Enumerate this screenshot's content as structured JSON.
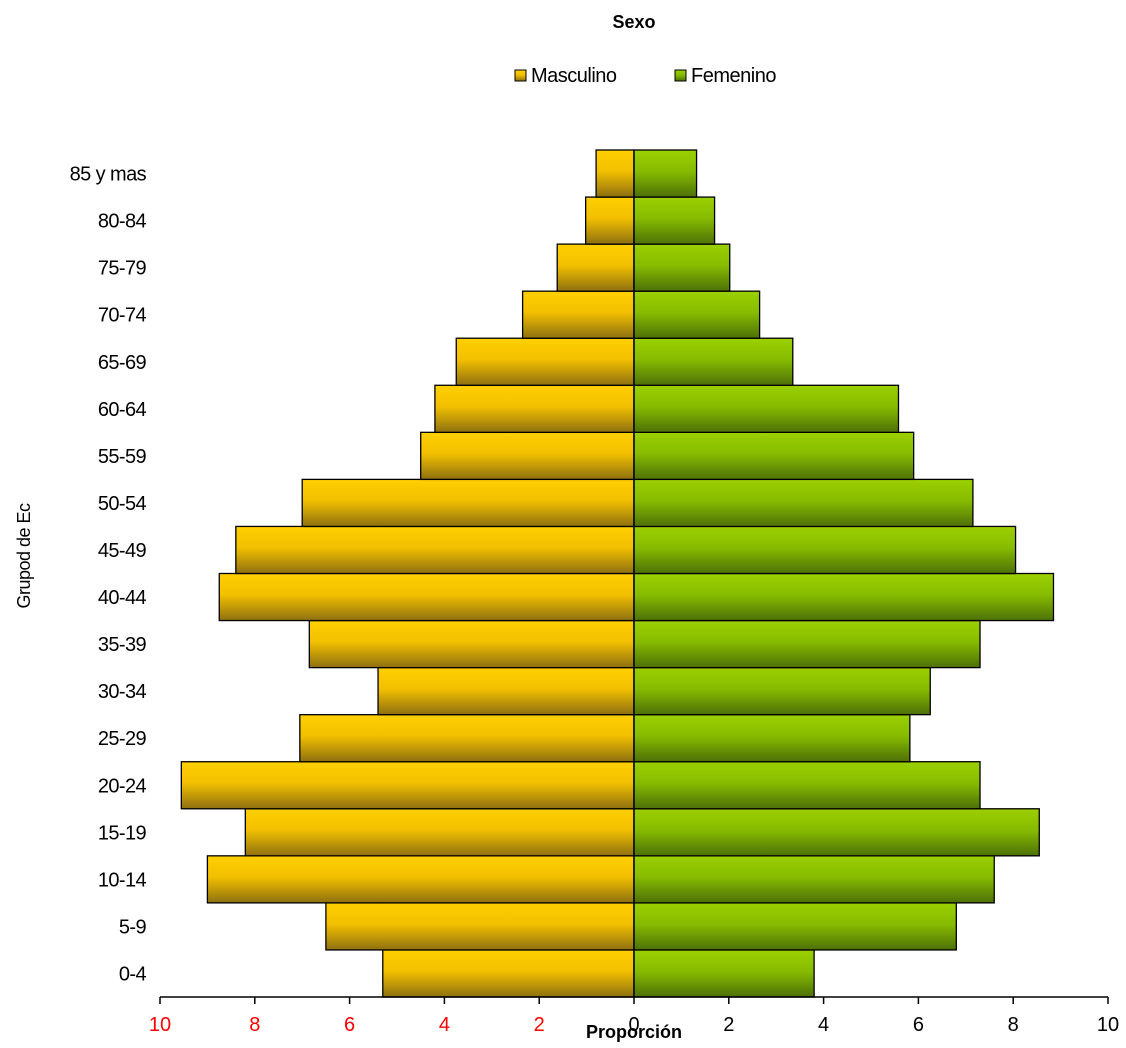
{
  "chart_data": {
    "type": "bar",
    "orientation": "horizontal",
    "layout": "population-pyramid",
    "title": "Sexo",
    "xlabel": "Proporción",
    "ylabel": "Grupod de Ec",
    "categories": [
      "0-4",
      "5-9",
      "10-14",
      "15-19",
      "20-24",
      "25-29",
      "30-34",
      "35-39",
      "40-44",
      "45-49",
      "50-54",
      "55-59",
      "60-64",
      "65-69",
      "70-74",
      "75-79",
      "80-84",
      "85 y mas"
    ],
    "series": [
      {
        "name": "Masculino",
        "color": "#F5C400",
        "side": "left",
        "values": [
          5.3,
          6.5,
          9.0,
          8.2,
          9.55,
          7.05,
          5.4,
          6.85,
          8.75,
          8.4,
          7.0,
          4.5,
          4.2,
          3.75,
          2.35,
          1.62,
          1.02,
          0.8
        ]
      },
      {
        "name": "Femenino",
        "color": "#8CC400",
        "side": "right",
        "values": [
          3.8,
          6.8,
          7.6,
          8.55,
          7.3,
          5.82,
          6.25,
          7.3,
          8.85,
          8.05,
          7.15,
          5.9,
          5.58,
          3.35,
          2.65,
          2.02,
          1.7,
          1.32
        ]
      }
    ],
    "xlim": [
      -10,
      10
    ],
    "x_ticks": [
      "10",
      "8",
      "6",
      "4",
      "2",
      "0",
      "2",
      "4",
      "6",
      "8",
      "10"
    ],
    "negative_tick_color": "#FF0000",
    "positive_tick_color": "#000000",
    "legend_position": "top",
    "grid": false
  }
}
